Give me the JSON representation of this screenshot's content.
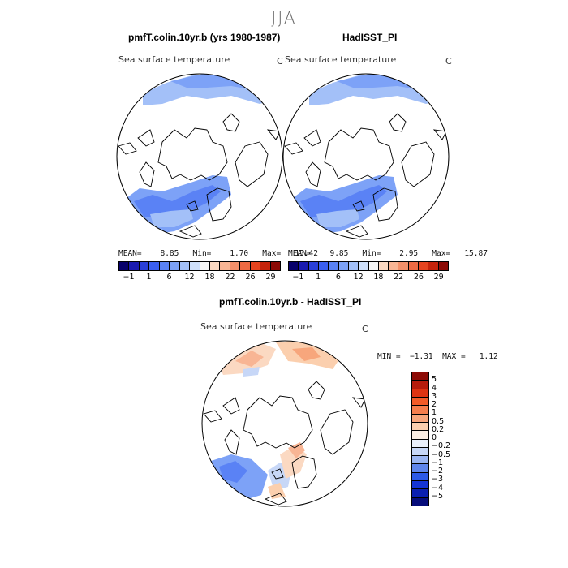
{
  "main_title": "JJA",
  "panels": [
    {
      "title": "pmfT.colin.10yr.b (yrs 1980-1987)",
      "variable": "Sea surface temperature",
      "unit": "C",
      "stats": "MEAN=    8.85   Min=    1.70   Max=   15.42"
    },
    {
      "title": "HadISST_PI",
      "variable": "Sea surface temperature",
      "unit": "C",
      "stats": "MEAN=    9.85   Min=    2.95   Max=   15.87"
    },
    {
      "title": "pmfT.colin.10yr.b - HadISST_PI",
      "variable": "Sea surface temperature",
      "unit": "C",
      "stats": "MIN =  −1.31  MAX =   1.12"
    }
  ],
  "abs_colorbar": {
    "ticks": [
      "−1",
      "1",
      "6",
      "12",
      "18",
      "22",
      "26",
      "29"
    ],
    "colors": [
      "#08006b",
      "#1a1ab0",
      "#2a3fd8",
      "#3b5ff0",
      "#5a82f5",
      "#7da2f7",
      "#a3c0f8",
      "#cfe0fb",
      "#f6f6f6",
      "#fbd9c2",
      "#f8b594",
      "#f3906a",
      "#ee6a43",
      "#e6441f",
      "#c5230b",
      "#8c0a05"
    ]
  },
  "diff_colorbar": {
    "labels": [
      "5",
      "4",
      "3",
      "2",
      "1",
      "0.5",
      "0.2",
      "0",
      "−0.2",
      "−0.5",
      "−1",
      "−2",
      "−3",
      "−4",
      "−5"
    ],
    "colors": [
      "#8c0a05",
      "#b71c0c",
      "#dd3312",
      "#f25b28",
      "#f57e4d",
      "#f7a67c",
      "#fbcfae",
      "#fbeee3",
      "#eaf0fb",
      "#c7d7f7",
      "#9ab5f2",
      "#5f86ec",
      "#2d5ae6",
      "#1434d6",
      "#0a1fb0",
      "#060d7a"
    ]
  }
}
